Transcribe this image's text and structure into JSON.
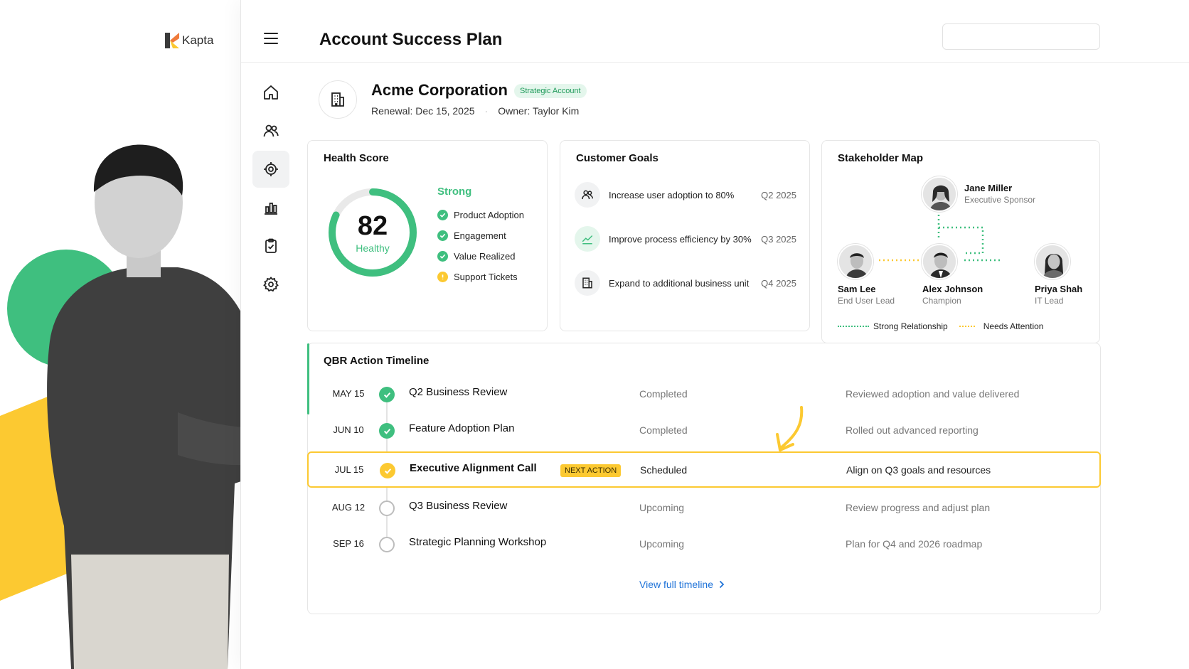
{
  "brand": {
    "name": "Kapta"
  },
  "header": {
    "title": "Account Success Plan",
    "search_placeholder": ""
  },
  "nav": [
    {
      "icon": "home-icon",
      "label": "Home",
      "active": false
    },
    {
      "icon": "users-icon",
      "label": "Users",
      "active": false
    },
    {
      "icon": "target-icon",
      "label": "Success Plans",
      "active": true
    },
    {
      "icon": "bar-chart-icon",
      "label": "Reports",
      "active": false
    },
    {
      "icon": "clipboard-check-icon",
      "label": "Tasks",
      "active": false
    },
    {
      "icon": "gear-icon",
      "label": "Settings",
      "active": false
    }
  ],
  "account": {
    "name": "Acme Corporation",
    "badge": "Strategic Account",
    "renewal": "Renewal: Dec 15, 2025",
    "separator": "·",
    "owner": "Owner: Taylor Kim"
  },
  "health": {
    "title": "Health Score",
    "score": "82",
    "score_label": "Healthy",
    "score_fraction": 0.82,
    "status": "Strong",
    "factors": [
      {
        "label": "Product Adoption",
        "state": "ok"
      },
      {
        "label": "Engagement",
        "state": "ok"
      },
      {
        "label": "Value Realized",
        "state": "ok"
      },
      {
        "label": "Support Tickets",
        "state": "warn"
      }
    ]
  },
  "goals": {
    "title": "Customer Goals",
    "items": [
      {
        "icon": "users-icon",
        "text": "Increase user adoption to 80%",
        "quarter": "Q2 2025"
      },
      {
        "icon": "trend-up-icon",
        "text": "Improve process efficiency by 30%",
        "quarter": "Q3 2025"
      },
      {
        "icon": "building-icon",
        "text": "Expand to additional business unit",
        "quarter": "Q4 2025"
      }
    ]
  },
  "stakeholders": {
    "title": "Stakeholder Map",
    "people": [
      {
        "name": "Jane Miller",
        "role": "Executive Sponsor"
      },
      {
        "name": "Sam Lee",
        "role": "End User Lead"
      },
      {
        "name": "Alex Johnson",
        "role": "Champion"
      },
      {
        "name": "Priya Shah",
        "role": "IT Lead"
      }
    ],
    "legend": {
      "strong": "Strong Relationship",
      "attention": "Needs Attention"
    },
    "colors": {
      "strong": "#3fbf7f",
      "attention": "#fcc931"
    }
  },
  "timeline": {
    "title": "QBR Action Timeline",
    "rows": [
      {
        "date": "MAY 15",
        "title": "Q2 Business Review",
        "status": "Completed",
        "note": "Reviewed adoption and value delivered",
        "state": "done"
      },
      {
        "date": "JUN 10",
        "title": "Feature Adoption Plan",
        "status": "Completed",
        "note": "Rolled out advanced reporting",
        "state": "done"
      },
      {
        "date": "JUL 15",
        "title": "Executive Alignment Call",
        "tag": "NEXT ACTION",
        "status": "Scheduled",
        "note": "Align on Q3 goals and resources",
        "state": "next"
      },
      {
        "date": "AUG 12",
        "title": "Q3 Business Review",
        "status": "Upcoming",
        "note": "Review progress and adjust plan",
        "state": "up"
      },
      {
        "date": "SEP 16",
        "title": "Strategic Planning Workshop",
        "status": "Upcoming",
        "note": "Plan for Q4 and 2026 roadmap",
        "state": "up"
      }
    ],
    "view_all": "View full timeline"
  },
  "colors": {
    "accent_green": "#3fbf7f",
    "accent_yellow": "#fcc931",
    "link_blue": "#1f73d8"
  }
}
